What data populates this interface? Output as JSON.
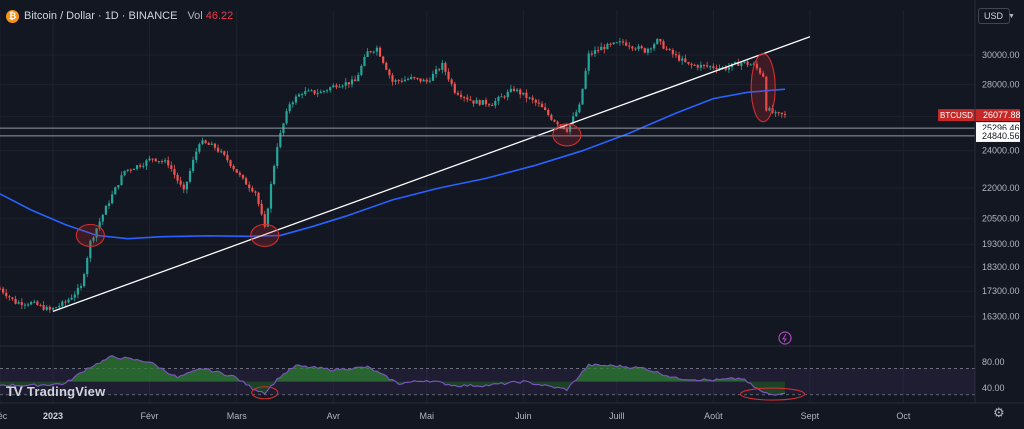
{
  "header": {
    "coin_symbol": "₿",
    "title": "Bitcoin / Dollar · 1D · BINANCE",
    "vol_label": "Vol",
    "vol_value": "46.22"
  },
  "currency": {
    "label": "USD",
    "chevron_icon": "chevron-down-icon"
  },
  "logo": {
    "mark": "TV",
    "text": "TradingView"
  },
  "settings_icon": "gear-icon",
  "colors": {
    "background": "#131722",
    "up": "#26a69a",
    "down": "#ef5350",
    "ma": "#2962ff",
    "trendline": "#ffffff",
    "highlight": "#d32f2f",
    "rsi_line": "#7e57c2",
    "rsi_fill_up": "#2e7d32",
    "price_tag": "#c62828",
    "grid": "#1e222d",
    "axis_text": "#b2b5be"
  },
  "chart_data": {
    "type": "candlestick",
    "symbol": "BTCUSD",
    "timeframe": "1D",
    "exchange": "BINANCE",
    "price_axis": {
      "min": 15800,
      "max": 31800,
      "scale": "log",
      "ticks": [
        "30000.00",
        "28000.00",
        "26000.00",
        "24000.00",
        "22000.00",
        "20500.00",
        "19300.00",
        "18300.00",
        "17300.00",
        "16300.00"
      ],
      "tick_values": [
        30000,
        28000,
        26000,
        24000,
        22000,
        20500,
        19300,
        18300,
        17300,
        16300
      ]
    },
    "time_axis": {
      "start": "2022-12-15",
      "end": "2023-10-24",
      "labels": [
        "déc",
        "2023",
        "Févr",
        "Mars",
        "Avr",
        "Mai",
        "Juin",
        "Juill",
        "Août",
        "Sept",
        "Oct"
      ],
      "label_dates": [
        "2022-12-15",
        "2023-01-01",
        "2023-02-01",
        "2023-03-01",
        "2023-04-01",
        "2023-05-01",
        "2023-06-01",
        "2023-07-01",
        "2023-08-01",
        "2023-09-01",
        "2023-10-01"
      ]
    },
    "price_path": [
      [
        "2022-12-15",
        17400
      ],
      [
        "2022-12-20",
        16850
      ],
      [
        "2022-12-25",
        16830
      ],
      [
        "2022-12-31",
        16550
      ],
      [
        "2023-01-05",
        16850
      ],
      [
        "2023-01-10",
        17450
      ],
      [
        "2023-01-13",
        19400
      ],
      [
        "2023-01-18",
        21000
      ],
      [
        "2023-01-24",
        22900
      ],
      [
        "2023-01-30",
        23300
      ],
      [
        "2023-02-02",
        23600
      ],
      [
        "2023-02-07",
        23300
      ],
      [
        "2023-02-12",
        21800
      ],
      [
        "2023-02-17",
        24500
      ],
      [
        "2023-02-22",
        24200
      ],
      [
        "2023-02-26",
        23500
      ],
      [
        "2023-03-03",
        22400
      ],
      [
        "2023-03-07",
        21800
      ],
      [
        "2023-03-10",
        20000
      ],
      [
        "2023-03-14",
        24300
      ],
      [
        "2023-03-18",
        26800
      ],
      [
        "2023-03-22",
        27500
      ],
      [
        "2023-03-28",
        27500
      ],
      [
        "2023-04-02",
        28000
      ],
      [
        "2023-04-08",
        28200
      ],
      [
        "2023-04-12",
        30200
      ],
      [
        "2023-04-15",
        30500
      ],
      [
        "2023-04-20",
        28200
      ],
      [
        "2023-04-26",
        28400
      ],
      [
        "2023-05-01",
        28200
      ],
      [
        "2023-05-06",
        29300
      ],
      [
        "2023-05-10",
        27600
      ],
      [
        "2023-05-16",
        26900
      ],
      [
        "2023-05-22",
        26800
      ],
      [
        "2023-05-29",
        27700
      ],
      [
        "2023-06-02",
        27200
      ],
      [
        "2023-06-06",
        26700
      ],
      [
        "2023-06-10",
        25900
      ],
      [
        "2023-06-15",
        25200
      ],
      [
        "2023-06-19",
        26600
      ],
      [
        "2023-06-22",
        30000
      ],
      [
        "2023-06-26",
        30500
      ],
      [
        "2023-07-03",
        30900
      ],
      [
        "2023-07-10",
        30300
      ],
      [
        "2023-07-14",
        31000
      ],
      [
        "2023-07-18",
        30200
      ],
      [
        "2023-07-24",
        29300
      ],
      [
        "2023-07-31",
        29200
      ],
      [
        "2023-08-05",
        29100
      ],
      [
        "2023-08-10",
        29500
      ],
      [
        "2023-08-14",
        29300
      ],
      [
        "2023-08-17",
        28600
      ],
      [
        "2023-08-18",
        26500
      ],
      [
        "2023-08-21",
        26100
      ],
      [
        "2023-08-24",
        26077.88
      ]
    ],
    "moving_average": [
      [
        "2022-12-15",
        21700
      ],
      [
        "2022-12-25",
        20900
      ],
      [
        "2023-01-05",
        20200
      ],
      [
        "2023-01-15",
        19700
      ],
      [
        "2023-01-25",
        19550
      ],
      [
        "2023-02-05",
        19640
      ],
      [
        "2023-02-20",
        19680
      ],
      [
        "2023-03-05",
        19660
      ],
      [
        "2023-03-15",
        19700
      ],
      [
        "2023-03-25",
        20100
      ],
      [
        "2023-04-05",
        20600
      ],
      [
        "2023-04-20",
        21400
      ],
      [
        "2023-05-05",
        22000
      ],
      [
        "2023-05-20",
        22500
      ],
      [
        "2023-06-05",
        23200
      ],
      [
        "2023-06-20",
        24000
      ],
      [
        "2023-07-05",
        25000
      ],
      [
        "2023-07-20",
        26200
      ],
      [
        "2023-08-01",
        27100
      ],
      [
        "2023-08-12",
        27500
      ],
      [
        "2023-08-24",
        27700
      ]
    ],
    "trendline": {
      "start": [
        "2023-01-01",
        16500
      ],
      "end": [
        "2023-09-01",
        31300
      ]
    },
    "horizontal_levels": [
      25296.46,
      24840.56
    ],
    "level_labels": [
      "25296.46",
      "24840.56"
    ],
    "current_price": {
      "symbol": "BTCUSD",
      "label": "26077.88",
      "value": 26077.88
    },
    "highlight_events": [
      [
        "2023-01-13",
        19700
      ],
      [
        "2023-03-10",
        19700
      ],
      [
        "2023-06-15",
        24900
      ],
      [
        "2023-08-17",
        27800
      ]
    ],
    "rsi_panel": {
      "ticks": [
        "80.00",
        "40.00"
      ],
      "tick_values": [
        80,
        40
      ],
      "min": 25,
      "max": 95,
      "band": [
        30,
        70
      ],
      "values": [
        [
          "2022-12-15",
          45
        ],
        [
          "2022-12-25",
          44
        ],
        [
          "2023-01-05",
          47
        ],
        [
          "2023-01-12",
          70
        ],
        [
          "2023-01-20",
          88
        ],
        [
          "2023-02-01",
          80
        ],
        [
          "2023-02-10",
          56
        ],
        [
          "2023-02-18",
          70
        ],
        [
          "2023-02-28",
          58
        ],
        [
          "2023-03-06",
          40
        ],
        [
          "2023-03-10",
          33
        ],
        [
          "2023-03-15",
          58
        ],
        [
          "2023-03-20",
          74
        ],
        [
          "2023-04-01",
          68
        ],
        [
          "2023-04-12",
          72
        ],
        [
          "2023-04-22",
          47
        ],
        [
          "2023-05-01",
          52
        ],
        [
          "2023-05-10",
          44
        ],
        [
          "2023-05-20",
          44
        ],
        [
          "2023-06-01",
          50
        ],
        [
          "2023-06-10",
          42
        ],
        [
          "2023-06-15",
          38
        ],
        [
          "2023-06-22",
          75
        ],
        [
          "2023-07-01",
          74
        ],
        [
          "2023-07-10",
          70
        ],
        [
          "2023-07-20",
          55
        ],
        [
          "2023-08-01",
          52
        ],
        [
          "2023-08-10",
          55
        ],
        [
          "2023-08-17",
          33
        ],
        [
          "2023-08-20",
          30
        ],
        [
          "2023-08-24",
          34
        ]
      ],
      "highlight_events": [
        [
          "2023-03-10",
          33
        ],
        [
          "2023-08-20",
          31
        ]
      ]
    },
    "indicator_icon": "lightning-icon"
  }
}
